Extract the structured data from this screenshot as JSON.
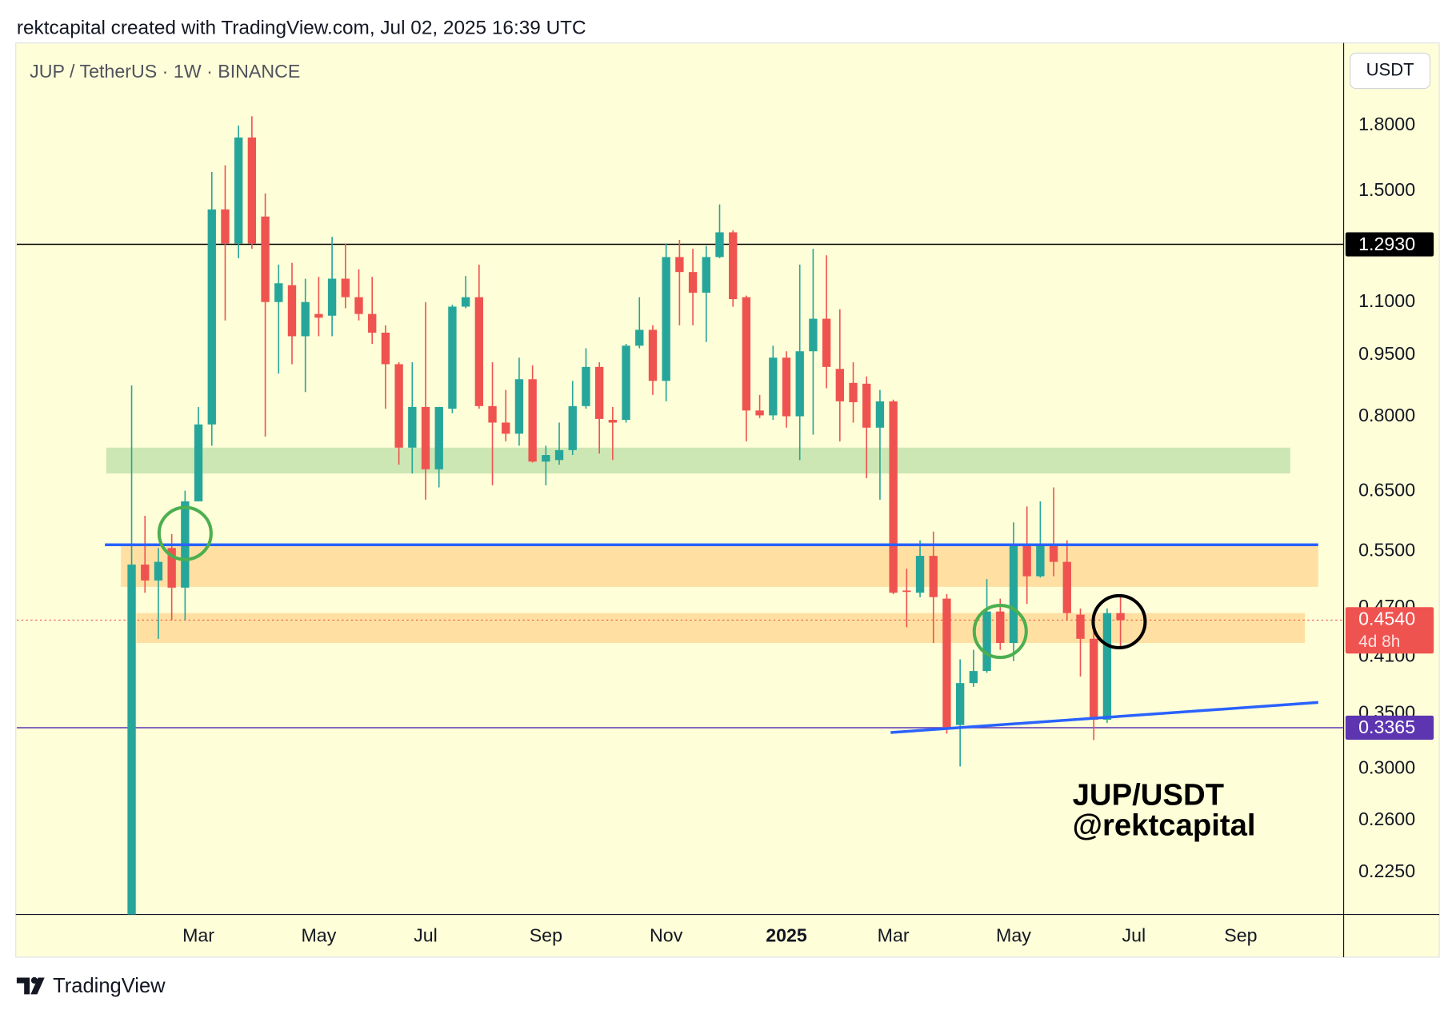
{
  "header": "rektcapital created with TradingView.com, Jul 02, 2025 16:39 UTC",
  "footer": "TradingView",
  "chart_data": {
    "type": "candlestick",
    "title": "JUP / TetherUS · 1W · BINANCE",
    "currency": "USDT",
    "log_scale": true,
    "grid": false,
    "up_color": "#26a69a",
    "down_color": "#ef5350",
    "xlim": [
      -8.6,
      90.7
    ],
    "ylim": [
      0.2,
      2.26
    ],
    "xticks": [
      {
        "value": 5,
        "label": "Mar"
      },
      {
        "value": 14,
        "label": "May"
      },
      {
        "value": 22,
        "label": "Jul"
      },
      {
        "value": 31,
        "label": "Sep"
      },
      {
        "value": 40,
        "label": "Nov"
      },
      {
        "value": 49,
        "label": "2025"
      },
      {
        "value": 57,
        "label": "Mar"
      },
      {
        "value": 66,
        "label": "May"
      },
      {
        "value": 75,
        "label": "Jul"
      },
      {
        "value": 83,
        "label": "Sep"
      }
    ],
    "yticks": [
      {
        "value": 1.8,
        "label": "1.8000"
      },
      {
        "value": 1.5,
        "label": "1.5000"
      },
      {
        "value": 1.1,
        "label": "1.1000"
      },
      {
        "value": 0.95,
        "label": "0.9500"
      },
      {
        "value": 0.8,
        "label": "0.8000"
      },
      {
        "value": 0.65,
        "label": "0.6500"
      },
      {
        "value": 0.55,
        "label": "0.5500"
      },
      {
        "value": 0.47,
        "label": "0.4700"
      },
      {
        "value": 0.41,
        "label": "0.4100"
      },
      {
        "value": 0.35,
        "label": "0.3500"
      },
      {
        "value": 0.3,
        "label": "0.3000"
      },
      {
        "value": 0.26,
        "label": "0.2600"
      },
      {
        "value": 0.225,
        "label": "0.2250"
      }
    ],
    "open": [
      0.18,
      0.53,
      0.507,
      0.555,
      0.497,
      0.632,
      0.783,
      1.425,
      1.296,
      1.741,
      1.397,
      1.101,
      1.154,
      1.001,
      1.065,
      1.06,
      1.175,
      1.116,
      1.065,
      1.011,
      0.926,
      0.734,
      0.822,
      0.691,
      0.818,
      1.087,
      1.116,
      0.824,
      0.787,
      0.763,
      0.888,
      0.706,
      0.709,
      0.729,
      0.824,
      0.919,
      0.793,
      0.793,
      0.975,
      1.019,
      0.884,
      1.248,
      1.197,
      1.13,
      1.248,
      1.337,
      1.116,
      0.814,
      0.803,
      0.943,
      0.801,
      0.96,
      1.051,
      0.914,
      0.879,
      0.877,
      0.776,
      0.835,
      0.493,
      0.49,
      0.543,
      0.482,
      0.339,
      0.381,
      0.394,
      0.465,
      0.426,
      0.558,
      0.513,
      0.558,
      0.534,
      0.461,
      0.431,
      0.344,
      0.463
    ],
    "high": [
      0.873,
      0.607,
      0.555,
      0.577,
      0.651,
      0.822,
      1.582,
      1.611,
      1.8,
      1.847,
      1.49,
      1.222,
      1.228,
      1.175,
      1.181,
      1.32,
      1.296,
      1.206,
      1.181,
      1.032,
      0.931,
      0.931,
      1.101,
      0.822,
      1.093,
      1.184,
      1.222,
      0.931,
      0.862,
      0.943,
      0.923,
      0.738,
      0.787,
      0.884,
      0.968,
      0.931,
      0.822,
      0.98,
      1.116,
      1.032,
      1.296,
      1.309,
      1.277,
      1.287,
      1.445,
      1.344,
      1.121,
      0.85,
      0.975,
      0.96,
      1.222,
      1.277,
      1.254,
      1.079,
      0.931,
      0.895,
      0.862,
      0.839,
      0.524,
      0.567,
      0.581,
      0.488,
      0.407,
      0.418,
      0.509,
      0.482,
      0.596,
      0.623,
      0.632,
      0.657,
      0.567,
      0.469,
      0.449,
      0.469,
      0.484
    ],
    "low": [
      0.18,
      0.49,
      0.431,
      0.454,
      0.454,
      0.632,
      0.738,
      1.046,
      1.244,
      1.277,
      0.757,
      0.902,
      0.926,
      0.857,
      1.001,
      1.001,
      1.082,
      1.046,
      0.98,
      0.818,
      0.7,
      0.683,
      0.635,
      0.657,
      0.808,
      1.082,
      0.818,
      0.661,
      0.747,
      0.738,
      0.704,
      0.661,
      0.7,
      0.719,
      0.818,
      0.722,
      0.709,
      0.787,
      0.968,
      0.85,
      0.835,
      1.032,
      1.032,
      0.985,
      1.244,
      1.087,
      0.747,
      0.797,
      0.793,
      0.776,
      0.709,
      0.761,
      0.866,
      0.747,
      0.787,
      0.674,
      0.635,
      0.488,
      0.445,
      0.484,
      0.426,
      0.331,
      0.302,
      0.377,
      0.392,
      0.418,
      0.405,
      0.475,
      0.511,
      0.513,
      0.454,
      0.388,
      0.325,
      0.341,
      0.419
    ],
    "close": [
      0.53,
      0.507,
      0.534,
      0.497,
      0.632,
      0.783,
      1.425,
      1.296,
      1.741,
      1.296,
      1.101,
      1.16,
      1.001,
      1.101,
      1.054,
      1.175,
      1.116,
      1.065,
      1.011,
      0.926,
      0.734,
      0.822,
      0.691,
      0.822,
      1.087,
      1.116,
      0.824,
      0.787,
      0.763,
      0.888,
      0.706,
      0.719,
      0.729,
      0.824,
      0.919,
      0.795,
      0.787,
      0.975,
      1.019,
      0.884,
      1.248,
      1.197,
      1.13,
      1.248,
      1.337,
      1.11,
      0.814,
      0.803,
      0.943,
      0.801,
      0.96,
      1.051,
      0.919,
      0.835,
      0.833,
      0.776,
      0.835,
      0.49,
      0.492,
      0.543,
      0.484,
      0.335,
      0.381,
      0.394,
      0.465,
      0.426,
      0.558,
      0.513,
      0.562,
      0.534,
      0.463,
      0.431,
      0.344,
      0.463,
      0.454
    ],
    "zones": [
      {
        "x": [
          -1.9,
          86.7
        ],
        "y": [
          0.683,
          0.734
        ],
        "color": "#c3e3ad"
      },
      {
        "x": [
          -0.8,
          88.8
        ],
        "y": [
          0.498,
          0.558
        ],
        "color": "#ffdb99"
      },
      {
        "x": [
          0.35,
          87.8
        ],
        "y": [
          0.426,
          0.463
        ],
        "color": "#ffdb99"
      }
    ],
    "trendlines": [
      {
        "x": [
          -2.0,
          88.8
        ],
        "y": [
          0.56,
          0.56
        ],
        "color": "#2962ff"
      },
      {
        "x": [
          56.8,
          88.8
        ],
        "y": [
          0.332,
          0.361
        ],
        "color": "#2962ff"
      }
    ],
    "circles": [
      {
        "x": 4,
        "y": 0.578,
        "color": "#4caf50"
      },
      {
        "x": 65,
        "y": 0.44,
        "color": "#4caf50"
      },
      {
        "x": 73.9,
        "y": 0.452,
        "color": "#000000"
      }
    ],
    "price_lines": [
      {
        "value": 1.293,
        "label": "1.2930",
        "color": "#000000"
      },
      {
        "value": 0.3365,
        "label": "0.3365",
        "color": "#5e35b1"
      }
    ],
    "last_price": {
      "value": 0.454,
      "label": "0.4540",
      "countdown": "4d 8h",
      "color": "#ef5350"
    },
    "annotation": [
      "JUP/USDT",
      "@rektcapital"
    ]
  }
}
